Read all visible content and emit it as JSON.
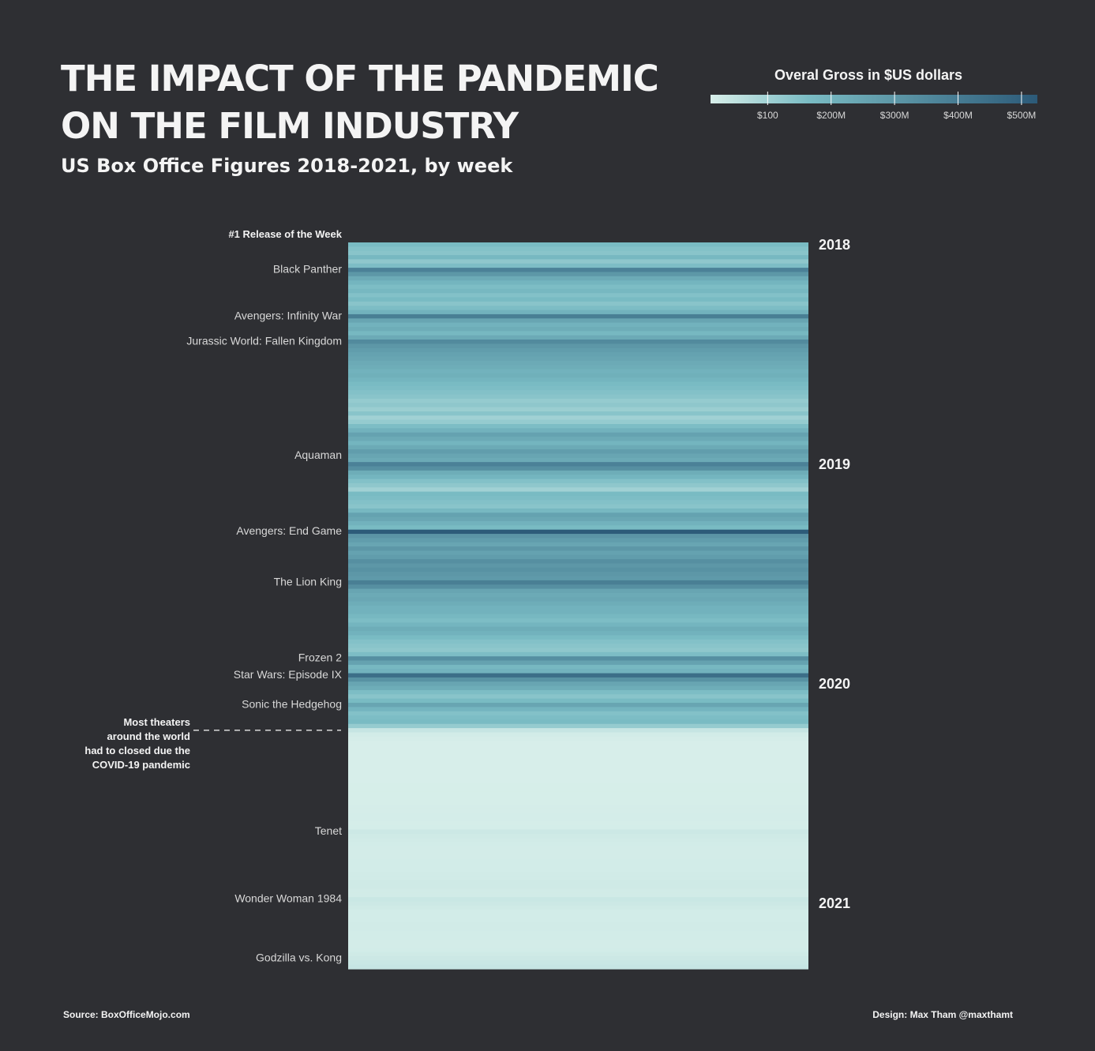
{
  "header": {
    "title_line1": "THE IMPACT OF THE PANDEMIC",
    "title_line2": "ON THE FILM INDUSTRY",
    "subtitle": "US Box Office Figures 2018-2021, by week"
  },
  "legend": {
    "title": "Overal Gross in $US dollars",
    "ticks": [
      {
        "value": 100,
        "label": "$100"
      },
      {
        "value": 200,
        "label": "$200M"
      },
      {
        "value": 300,
        "label": "$300M"
      },
      {
        "value": 400,
        "label": "$400M"
      },
      {
        "value": 500,
        "label": "$500M"
      }
    ],
    "range": [
      10,
      525
    ],
    "color_low": "#d8efea",
    "color_high": "#2c5a78"
  },
  "chart_data": {
    "type": "heatmap",
    "title": "THE IMPACT OF THE PANDEMIC ON THE FILM INDUSTRY",
    "subtitle": "US Box Office Figures 2018-2021, by week",
    "colorbar_label": "Overal Gross in $US dollars",
    "value_unit": "$M",
    "column_header": "#1 Release of the Week",
    "year_labels": [
      {
        "label": "2018",
        "week": 0
      },
      {
        "label": "2019",
        "week": 52
      },
      {
        "label": "2020",
        "week": 104
      },
      {
        "label": "2021",
        "week": 156
      }
    ],
    "releases": [
      {
        "name": "Black Panther",
        "week": 6
      },
      {
        "name": "Avengers: Infinity War",
        "week": 17
      },
      {
        "name": "Jurassic World: Fallen Kingdom",
        "week": 23
      },
      {
        "name": "Aquaman",
        "week": 50
      },
      {
        "name": "Avengers: End Game",
        "week": 68
      },
      {
        "name": "The Lion King",
        "week": 80
      },
      {
        "name": "Frozen 2",
        "week": 98
      },
      {
        "name": "Star Wars: Episode IX",
        "week": 102
      },
      {
        "name": "Sonic the Hedgehog",
        "week": 109
      },
      {
        "name": "Tenet",
        "week": 139
      },
      {
        "name": "Wonder Woman 1984",
        "week": 155
      },
      {
        "name": "Godzilla vs. Kong",
        "week": 169
      }
    ],
    "annotation": {
      "lines": [
        "Most theaters",
        "around the world",
        "had to closed due the",
        "COVID-19 pandemic"
      ],
      "week": 115
    },
    "weekly_gross": [
      170,
      150,
      140,
      180,
      130,
      160,
      380,
      300,
      230,
      190,
      160,
      180,
      150,
      170,
      140,
      160,
      200,
      390,
      250,
      200,
      220,
      180,
      230,
      350,
      300,
      280,
      260,
      250,
      230,
      220,
      200,
      210,
      190,
      170,
      160,
      150,
      140,
      120,
      130,
      110,
      140,
      100,
      120,
      160,
      200,
      260,
      230,
      190,
      230,
      280,
      250,
      230,
      380,
      330,
      220,
      190,
      150,
      130,
      100,
      170,
      160,
      150,
      140,
      180,
      260,
      240,
      200,
      170,
      520,
      310,
      280,
      250,
      300,
      260,
      280,
      330,
      300,
      320,
      300,
      290,
      390,
      330,
      250,
      230,
      240,
      220,
      200,
      200,
      180,
      160,
      190,
      220,
      200,
      170,
      150,
      140,
      130,
      160,
      330,
      260,
      180,
      200,
      450,
      320,
      250,
      220,
      160,
      140,
      170,
      250,
      190,
      150,
      160,
      170,
      120,
      40,
      20,
      15,
      12,
      12,
      12,
      12,
      12,
      12,
      12,
      12,
      12,
      12,
      14,
      14,
      14,
      14,
      14,
      15,
      15,
      16,
      16,
      15,
      16,
      30,
      25,
      22,
      20,
      18,
      18,
      18,
      20,
      20,
      20,
      22,
      22,
      25,
      25,
      22,
      22,
      35,
      30,
      25,
      20,
      20,
      20,
      22,
      22,
      20,
      20,
      18,
      18,
      20,
      25,
      30,
      35,
      40
    ],
    "value_range": [
      10,
      525
    ]
  },
  "footer": {
    "source": "Source: BoxOfficeMojo.com",
    "design": "Design: Max Tham @maxthamt"
  }
}
